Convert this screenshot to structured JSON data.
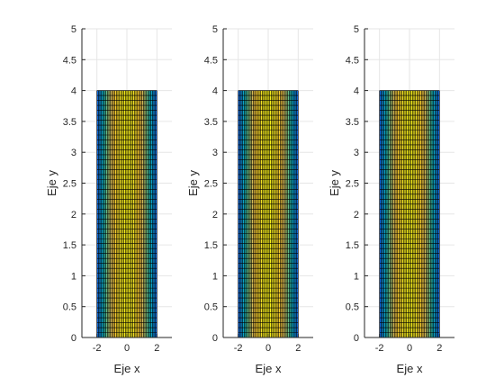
{
  "chart_data": [
    {
      "type": "surface",
      "view": "top (x-y plane)",
      "xlabel": "Eje x",
      "ylabel": "Eje y",
      "xlim": [
        -3,
        3
      ],
      "ylim": [
        0,
        5
      ],
      "xticks": [
        -2,
        0,
        2
      ],
      "yticks": [
        0,
        0.5,
        1,
        1.5,
        2,
        2.5,
        3,
        3.5,
        4,
        4.5,
        5
      ],
      "xtick_labels": [
        "-2",
        "0",
        "2"
      ],
      "ytick_labels": [
        "0",
        "0.5",
        "1",
        "1.5",
        "2",
        "2.5",
        "3",
        "3.5",
        "4",
        "4.5",
        "5"
      ],
      "grid": true,
      "surface": {
        "x_range": [
          -2,
          2
        ],
        "y_range": [
          0,
          4
        ],
        "x_divisions": 40,
        "y_divisions": 50,
        "colormap": "parula",
        "color_varies_with": "x"
      }
    },
    {
      "type": "surface",
      "view": "top (x-y plane)",
      "xlabel": "Eje x",
      "ylabel": "Eje y",
      "xlim": [
        -3,
        3
      ],
      "ylim": [
        0,
        5
      ],
      "xticks": [
        -2,
        0,
        2
      ],
      "yticks": [
        0,
        0.5,
        1,
        1.5,
        2,
        2.5,
        3,
        3.5,
        4,
        4.5,
        5
      ],
      "xtick_labels": [
        "-2",
        "0",
        "2"
      ],
      "ytick_labels": [
        "0",
        "0.5",
        "1",
        "1.5",
        "2",
        "2.5",
        "3",
        "3.5",
        "4",
        "4.5",
        "5"
      ],
      "grid": true,
      "surface": {
        "x_range": [
          -2,
          2
        ],
        "y_range": [
          0,
          4
        ],
        "x_divisions": 40,
        "y_divisions": 50,
        "colormap": "parula",
        "color_varies_with": "x"
      }
    },
    {
      "type": "surface",
      "view": "top (x-y plane)",
      "xlabel": "Eje x",
      "ylabel": "Eje y",
      "xlim": [
        -3,
        3
      ],
      "ylim": [
        0,
        5
      ],
      "xticks": [
        -2,
        0,
        2
      ],
      "yticks": [
        0,
        0.5,
        1,
        1.5,
        2,
        2.5,
        3,
        3.5,
        4,
        4.5,
        5
      ],
      "xtick_labels": [
        "-2",
        "0",
        "2"
      ],
      "ytick_labels": [
        "0",
        "0.5",
        "1",
        "1.5",
        "2",
        "2.5",
        "3",
        "3.5",
        "4",
        "4.5",
        "5"
      ],
      "grid": true,
      "surface": {
        "x_range": [
          -2,
          2
        ],
        "y_range": [
          0,
          4
        ],
        "x_divisions": 40,
        "y_divisions": 50,
        "colormap": "parula",
        "color_varies_with": "x"
      }
    }
  ],
  "colors": {
    "background": "#ffffff",
    "axis": "#262626",
    "grid": "#e6e6e6",
    "mesh_edge": "#000000"
  }
}
